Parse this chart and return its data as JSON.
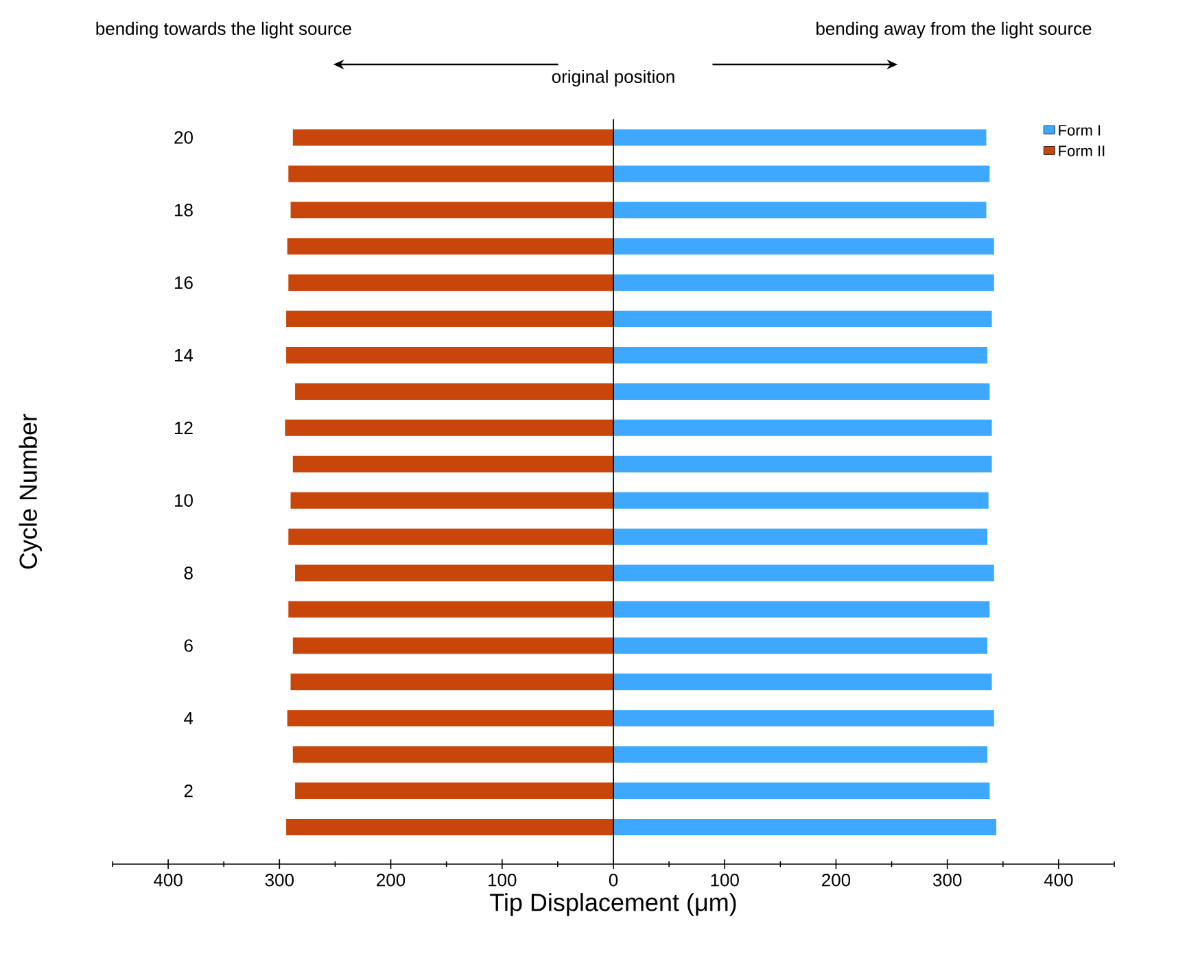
{
  "chart_data": {
    "type": "bar",
    "orientation": "horizontal",
    "stacked": true,
    "xlabel": "Tip Displacement (μm)",
    "ylabel": "Cycle Number",
    "categories": [
      "20",
      null,
      "18",
      null,
      "16",
      null,
      "14",
      null,
      "12",
      null,
      "10",
      null,
      "8",
      null,
      "6",
      null,
      "4",
      null,
      "2",
      null
    ],
    "series": [
      {
        "name": "Form I",
        "color": "#3ea8ff",
        "values": [
          335,
          338,
          335,
          342,
          342,
          340,
          336,
          338,
          340,
          340,
          337,
          336,
          342,
          338,
          336,
          340,
          342,
          336,
          338,
          344
        ]
      },
      {
        "name": "Form II",
        "color": "#c8460a",
        "values": [
          -288,
          -292,
          -290,
          -293,
          -292,
          -294,
          -294,
          -286,
          -295,
          -288,
          -290,
          -292,
          -286,
          -292,
          -288,
          -290,
          -293,
          -288,
          -286,
          -294
        ]
      }
    ],
    "xlim": [
      -450,
      450
    ],
    "xticks": [
      {
        "value": -450,
        "label": null
      },
      {
        "value": -400,
        "label": "400"
      },
      {
        "value": -350,
        "label": null
      },
      {
        "value": -300,
        "label": "300"
      },
      {
        "value": -250,
        "label": null
      },
      {
        "value": -200,
        "label": "200"
      },
      {
        "value": -150,
        "label": null
      },
      {
        "value": -100,
        "label": "100"
      },
      {
        "value": -50,
        "label": null
      },
      0,
      {
        "value": 50,
        "label": null
      },
      100,
      {
        "value": 150,
        "label": null
      },
      200,
      {
        "value": 250,
        "label": null
      },
      300,
      {
        "value": 350,
        "label": null
      },
      400,
      {
        "value": 450,
        "label": null
      }
    ],
    "ref_lines": [
      {
        "axis": "x",
        "value": 0,
        "label": "original position",
        "color": "#000000"
      }
    ],
    "annotations": [
      "bending towards the light source",
      "bending away from the light source"
    ],
    "legend": "top right"
  }
}
